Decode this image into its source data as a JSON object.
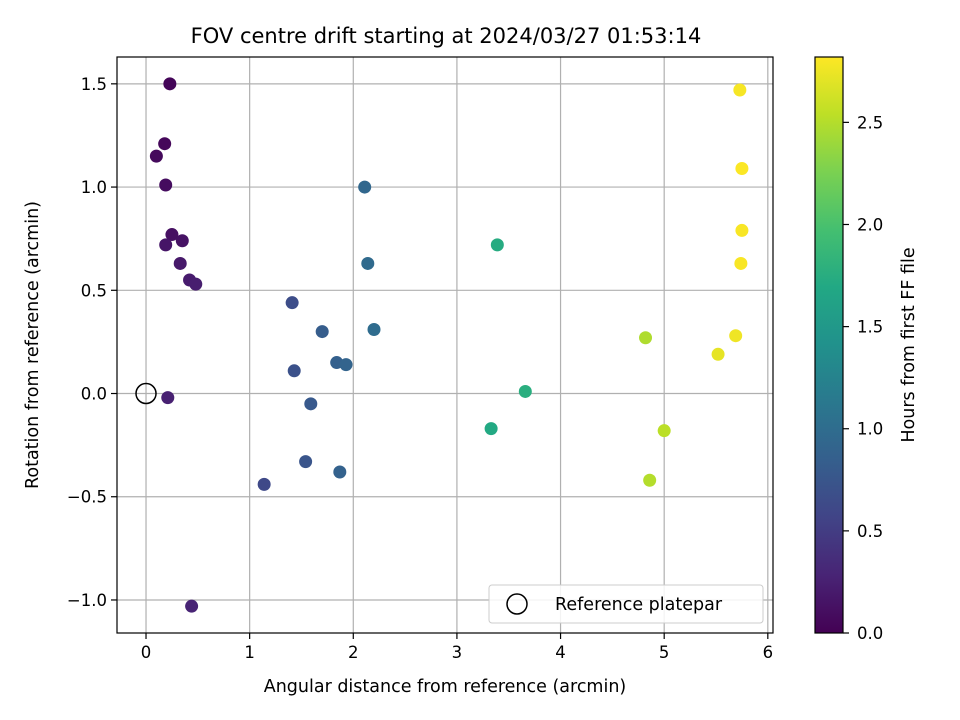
{
  "chart_data": {
    "type": "scatter",
    "title": "FOV centre drift starting at 2024/03/27 01:53:14",
    "xlabel": "Angular distance from reference (arcmin)",
    "ylabel": "Rotation from reference (arcmin)",
    "xlim": [
      -0.28,
      6.05
    ],
    "ylim": [
      -1.16,
      1.63
    ],
    "xticks": [
      0,
      1,
      2,
      3,
      4,
      5,
      6
    ],
    "xtick_labels": [
      "0",
      "1",
      "2",
      "3",
      "4",
      "5",
      "6"
    ],
    "yticks": [
      -1.0,
      -0.5,
      0.0,
      0.5,
      1.0,
      1.5
    ],
    "ytick_labels": [
      "−1.0",
      "−0.5",
      "0.0",
      "0.5",
      "1.0",
      "1.5"
    ],
    "grid": true,
    "colorbar": {
      "label": "Hours from first FF file",
      "colormap": "viridis",
      "range": [
        0.0,
        2.82
      ],
      "ticks": [
        0.0,
        0.5,
        1.0,
        1.5,
        2.0,
        2.5
      ],
      "tick_labels": [
        "0.0",
        "0.5",
        "1.0",
        "1.5",
        "2.0",
        "2.5"
      ]
    },
    "legend": {
      "location": "lower right",
      "entries": [
        {
          "label": "Reference platepar",
          "marker": "open-circle"
        }
      ]
    },
    "reference_point": {
      "x": 0.0,
      "y": 0.0
    },
    "points": [
      {
        "x": 0.23,
        "y": 1.5,
        "hours": 0.03
      },
      {
        "x": 0.18,
        "y": 1.21,
        "hours": 0.05
      },
      {
        "x": 0.1,
        "y": 1.15,
        "hours": 0.07
      },
      {
        "x": 0.19,
        "y": 1.01,
        "hours": 0.09
      },
      {
        "x": 0.25,
        "y": 0.77,
        "hours": 0.12
      },
      {
        "x": 0.35,
        "y": 0.74,
        "hours": 0.14
      },
      {
        "x": 0.19,
        "y": 0.72,
        "hours": 0.16
      },
      {
        "x": 0.33,
        "y": 0.63,
        "hours": 0.19
      },
      {
        "x": 0.42,
        "y": 0.55,
        "hours": 0.21
      },
      {
        "x": 0.48,
        "y": 0.53,
        "hours": 0.23
      },
      {
        "x": 0.21,
        "y": -0.02,
        "hours": 0.26
      },
      {
        "x": 0.44,
        "y": -1.03,
        "hours": 0.28
      },
      {
        "x": 1.14,
        "y": -0.44,
        "hours": 0.62
      },
      {
        "x": 1.41,
        "y": 0.44,
        "hours": 0.66
      },
      {
        "x": 1.43,
        "y": 0.11,
        "hours": 0.7
      },
      {
        "x": 1.54,
        "y": -0.33,
        "hours": 0.74
      },
      {
        "x": 1.59,
        "y": -0.05,
        "hours": 0.78
      },
      {
        "x": 1.7,
        "y": 0.3,
        "hours": 0.82
      },
      {
        "x": 1.84,
        "y": 0.15,
        "hours": 0.86
      },
      {
        "x": 1.87,
        "y": -0.38,
        "hours": 0.88
      },
      {
        "x": 1.93,
        "y": 0.14,
        "hours": 0.9
      },
      {
        "x": 2.11,
        "y": 1.0,
        "hours": 0.94
      },
      {
        "x": 2.14,
        "y": 0.63,
        "hours": 0.97
      },
      {
        "x": 2.2,
        "y": 0.31,
        "hours": 0.99
      },
      {
        "x": 3.33,
        "y": -0.17,
        "hours": 1.7
      },
      {
        "x": 3.39,
        "y": 0.72,
        "hours": 1.73
      },
      {
        "x": 3.66,
        "y": 0.01,
        "hours": 1.76
      },
      {
        "x": 4.82,
        "y": 0.27,
        "hours": 2.48
      },
      {
        "x": 4.86,
        "y": -0.42,
        "hours": 2.5
      },
      {
        "x": 5.0,
        "y": -0.18,
        "hours": 2.53
      },
      {
        "x": 5.52,
        "y": 0.19,
        "hours": 2.72
      },
      {
        "x": 5.69,
        "y": 0.28,
        "hours": 2.76
      },
      {
        "x": 5.73,
        "y": 1.47,
        "hours": 2.79
      },
      {
        "x": 5.74,
        "y": 0.63,
        "hours": 2.8
      },
      {
        "x": 5.75,
        "y": 0.79,
        "hours": 2.8
      },
      {
        "x": 5.75,
        "y": 1.09,
        "hours": 2.81
      }
    ]
  }
}
